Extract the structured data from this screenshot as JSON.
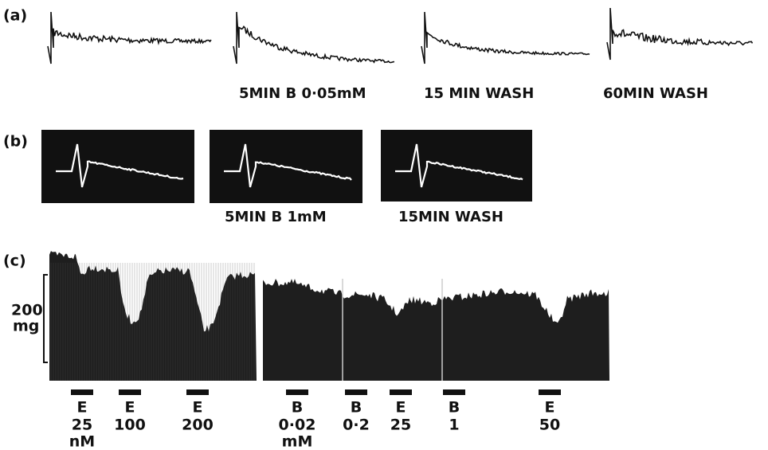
{
  "panel_a": {
    "label": "(a)",
    "captions": [
      "5MIN  B 0·05mM",
      "15 MIN  WASH",
      "60MIN WASH"
    ]
  },
  "panel_b": {
    "label": "(b)",
    "captions": [
      "5MIN B 1mM",
      "15MIN WASH"
    ]
  },
  "panel_c": {
    "label": "(c)",
    "scale": [
      "200",
      "mg"
    ],
    "markers": [
      {
        "drug": "E",
        "dose": "25",
        "unit": "nM"
      },
      {
        "drug": "E",
        "dose": "100"
      },
      {
        "drug": "E",
        "dose": "200"
      },
      {
        "drug": "B",
        "dose": "0·02",
        "unit": "mM"
      },
      {
        "drug": "B",
        "dose": "0·2"
      },
      {
        "drug": "E",
        "dose": "25"
      },
      {
        "drug": "B",
        "dose": "1"
      },
      {
        "drug": "E",
        "dose": "50"
      }
    ]
  }
}
